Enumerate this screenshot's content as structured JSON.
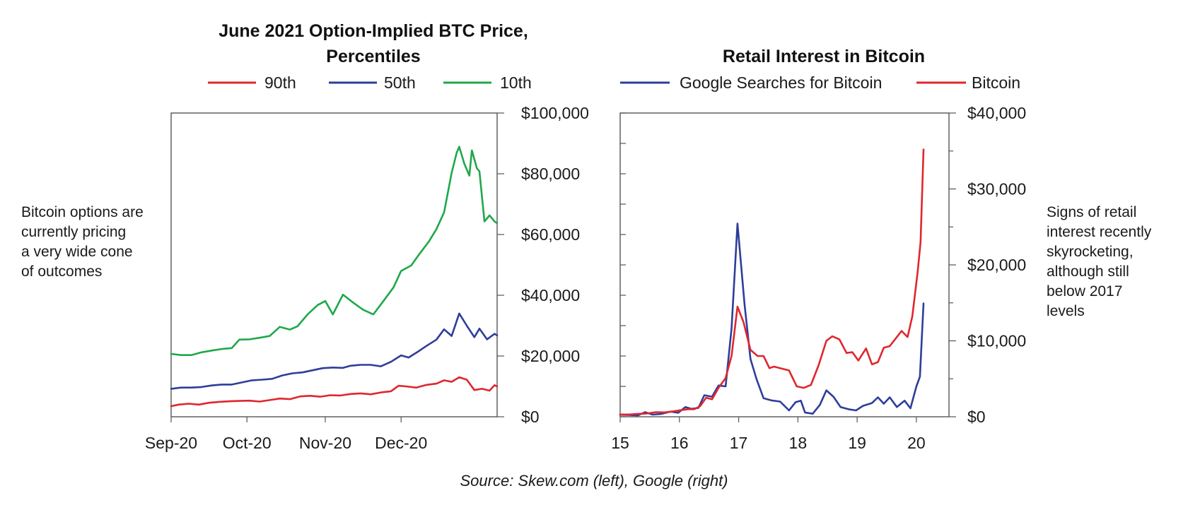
{
  "source": "Source: Skew.com (left), Google (right)",
  "colors": {
    "red": "#e0262e",
    "blue": "#2d3e9a",
    "green": "#1fa84a"
  },
  "chart_data": [
    {
      "type": "line",
      "title_lines": [
        "June 2021 Option-Implied BTC Price,",
        "Percentiles"
      ],
      "note_lines": [
        "Bitcoin options are",
        "currently pricing",
        "a very wide cone",
        "of outcomes"
      ],
      "xlabel": "",
      "ylabel": "",
      "x_ticks": [
        "Sep-20",
        "Oct-20",
        "Nov-20",
        "Dec-20"
      ],
      "x_range": [
        "2020-09-01",
        "2021-01-08"
      ],
      "y_ticks": [
        "$100,000",
        "$80,000",
        "$60,000",
        "$40,000",
        "$20,000",
        "$0"
      ],
      "y_tick_values": [
        100000,
        80000,
        60000,
        40000,
        20000,
        0
      ],
      "ylim": [
        0,
        100000
      ],
      "y_axis_side": "right",
      "legend_position": "top",
      "grid": false,
      "series": [
        {
          "name": "90th",
          "color": "#e0262e",
          "points": [
            [
              "2020-09-01",
              3500
            ],
            [
              "2020-09-04",
              4000
            ],
            [
              "2020-09-08",
              4300
            ],
            [
              "2020-09-12",
              4000
            ],
            [
              "2020-09-16",
              4600
            ],
            [
              "2020-09-20",
              4900
            ],
            [
              "2020-09-24",
              5100
            ],
            [
              "2020-09-28",
              5200
            ],
            [
              "2020-10-02",
              5300
            ],
            [
              "2020-10-06",
              5000
            ],
            [
              "2020-10-10",
              5500
            ],
            [
              "2020-10-14",
              6000
            ],
            [
              "2020-10-18",
              5800
            ],
            [
              "2020-10-22",
              6700
            ],
            [
              "2020-10-26",
              6900
            ],
            [
              "2020-10-30",
              6600
            ],
            [
              "2020-11-03",
              7100
            ],
            [
              "2020-11-07",
              7000
            ],
            [
              "2020-11-11",
              7500
            ],
            [
              "2020-11-15",
              7700
            ],
            [
              "2020-11-19",
              7400
            ],
            [
              "2020-11-23",
              8000
            ],
            [
              "2020-11-27",
              8400
            ],
            [
              "2020-11-30",
              10200
            ],
            [
              "2020-12-03",
              10000
            ],
            [
              "2020-12-07",
              9600
            ],
            [
              "2020-12-11",
              10500
            ],
            [
              "2020-12-15",
              10900
            ],
            [
              "2020-12-18",
              12000
            ],
            [
              "2020-12-21",
              11500
            ],
            [
              "2020-12-24",
              13000
            ],
            [
              "2020-12-27",
              12200
            ],
            [
              "2020-12-30",
              8800
            ],
            [
              "2021-01-02",
              9200
            ],
            [
              "2021-01-05",
              8600
            ],
            [
              "2021-01-07",
              10400
            ],
            [
              "2021-01-08",
              10000
            ]
          ]
        },
        {
          "name": "50th",
          "color": "#2d3e9a",
          "points": [
            [
              "2020-09-01",
              9200
            ],
            [
              "2020-09-05",
              9600
            ],
            [
              "2020-09-09",
              9600
            ],
            [
              "2020-09-13",
              9800
            ],
            [
              "2020-09-17",
              10300
            ],
            [
              "2020-09-21",
              10600
            ],
            [
              "2020-09-25",
              10600
            ],
            [
              "2020-09-29",
              11300
            ],
            [
              "2020-10-03",
              12000
            ],
            [
              "2020-10-07",
              12200
            ],
            [
              "2020-10-11",
              12500
            ],
            [
              "2020-10-15",
              13600
            ],
            [
              "2020-10-19",
              14300
            ],
            [
              "2020-10-23",
              14600
            ],
            [
              "2020-10-27",
              15300
            ],
            [
              "2020-10-31",
              16000
            ],
            [
              "2020-11-04",
              16200
            ],
            [
              "2020-11-08",
              16100
            ],
            [
              "2020-11-11",
              16800
            ],
            [
              "2020-11-15",
              17100
            ],
            [
              "2020-11-19",
              17100
            ],
            [
              "2020-11-23",
              16600
            ],
            [
              "2020-11-27",
              18100
            ],
            [
              "2020-12-01",
              20200
            ],
            [
              "2020-12-04",
              19500
            ],
            [
              "2020-12-08",
              21600
            ],
            [
              "2020-12-11",
              23300
            ],
            [
              "2020-12-15",
              25400
            ],
            [
              "2020-12-18",
              28800
            ],
            [
              "2020-12-21",
              26600
            ],
            [
              "2020-12-24",
              34000
            ],
            [
              "2020-12-27",
              30000
            ],
            [
              "2020-12-30",
              26200
            ],
            [
              "2021-01-01",
              29000
            ],
            [
              "2021-01-04",
              25500
            ],
            [
              "2021-01-07",
              27300
            ],
            [
              "2021-01-08",
              26800
            ]
          ]
        },
        {
          "name": "10th",
          "color": "#1fa84a",
          "points": [
            [
              "2020-09-01",
              20700
            ],
            [
              "2020-09-05",
              20300
            ],
            [
              "2020-09-09",
              20300
            ],
            [
              "2020-09-13",
              21200
            ],
            [
              "2020-09-17",
              21800
            ],
            [
              "2020-09-21",
              22300
            ],
            [
              "2020-09-25",
              22600
            ],
            [
              "2020-09-28",
              25400
            ],
            [
              "2020-10-02",
              25500
            ],
            [
              "2020-10-06",
              26000
            ],
            [
              "2020-10-10",
              26600
            ],
            [
              "2020-10-14",
              29600
            ],
            [
              "2020-10-18",
              28700
            ],
            [
              "2020-10-21",
              29800
            ],
            [
              "2020-10-25",
              33700
            ],
            [
              "2020-10-29",
              36800
            ],
            [
              "2020-11-01",
              38100
            ],
            [
              "2020-11-04",
              33700
            ],
            [
              "2020-11-08",
              40200
            ],
            [
              "2020-11-12",
              37600
            ],
            [
              "2020-11-16",
              35200
            ],
            [
              "2020-11-20",
              33700
            ],
            [
              "2020-11-24",
              38100
            ],
            [
              "2020-11-28",
              42600
            ],
            [
              "2020-12-01",
              48000
            ],
            [
              "2020-12-05",
              49800
            ],
            [
              "2020-12-08",
              53300
            ],
            [
              "2020-12-12",
              57700
            ],
            [
              "2020-12-15",
              61800
            ],
            [
              "2020-12-18",
              67300
            ],
            [
              "2020-12-21",
              80300
            ],
            [
              "2020-12-23",
              86900
            ],
            [
              "2020-12-24",
              88900
            ],
            [
              "2020-12-26",
              83400
            ],
            [
              "2020-12-28",
              79400
            ],
            [
              "2020-12-29",
              87700
            ],
            [
              "2020-12-31",
              81800
            ],
            [
              "2021-01-01",
              80800
            ],
            [
              "2021-01-03",
              64300
            ],
            [
              "2021-01-05",
              66300
            ],
            [
              "2021-01-07",
              64300
            ],
            [
              "2021-01-08",
              63700
            ]
          ]
        }
      ]
    },
    {
      "type": "line",
      "title_lines": [
        "Retail Interest in Bitcoin"
      ],
      "note_lines": [
        "Signs of retail",
        "interest recently",
        "skyrocketing,",
        "although still",
        "below 2017",
        "levels"
      ],
      "xlabel": "",
      "ylabel": "",
      "x_ticks": [
        "15",
        "16",
        "17",
        "18",
        "19",
        "20"
      ],
      "x_tick_values": [
        15,
        16,
        17,
        18,
        19,
        20
      ],
      "xlim": [
        15,
        20.55
      ],
      "y_ticks": [
        "$40,000",
        "$30,000",
        "$20,000",
        "$10,000",
        "$0"
      ],
      "y_tick_values": [
        40000,
        30000,
        20000,
        10000,
        0
      ],
      "ylim": [
        0,
        40000
      ],
      "y_axis_side": "right",
      "legend_position": "top",
      "grid": false,
      "series": [
        {
          "name": "Google Searches for Bitcoin",
          "color": "#2d3e9a",
          "axis": "left",
          "points": [
            [
              15.0,
              650
            ],
            [
              15.15,
              600
            ],
            [
              15.3,
              450
            ],
            [
              15.42,
              1500
            ],
            [
              15.55,
              700
            ],
            [
              15.7,
              950
            ],
            [
              15.85,
              1700
            ],
            [
              15.98,
              1300
            ],
            [
              16.1,
              3200
            ],
            [
              16.2,
              2600
            ],
            [
              16.32,
              2900
            ],
            [
              16.42,
              7100
            ],
            [
              16.55,
              6600
            ],
            [
              16.66,
              10300
            ],
            [
              16.78,
              10000
            ],
            [
              16.88,
              29000
            ],
            [
              16.98,
              63600
            ],
            [
              17.1,
              37000
            ],
            [
              17.2,
              19000
            ],
            [
              17.3,
              12500
            ],
            [
              17.42,
              6100
            ],
            [
              17.55,
              5400
            ],
            [
              17.7,
              5000
            ],
            [
              17.85,
              2100
            ],
            [
              17.96,
              4800
            ],
            [
              18.05,
              5300
            ],
            [
              18.12,
              1400
            ],
            [
              18.25,
              1000
            ],
            [
              18.37,
              3900
            ],
            [
              18.48,
              8700
            ],
            [
              18.6,
              6600
            ],
            [
              18.72,
              3200
            ],
            [
              18.85,
              2500
            ],
            [
              18.98,
              2100
            ],
            [
              19.1,
              3600
            ],
            [
              19.25,
              4500
            ],
            [
              19.35,
              6400
            ],
            [
              19.45,
              4300
            ],
            [
              19.55,
              6400
            ],
            [
              19.67,
              3200
            ],
            [
              19.8,
              5300
            ],
            [
              19.9,
              2800
            ],
            [
              20.0,
              10000
            ],
            [
              20.06,
              13200
            ],
            [
              20.12,
              37300
            ]
          ]
        },
        {
          "name": "Bitcoin",
          "color": "#e0262e",
          "axis": "right",
          "points": [
            [
              15.0,
              300
            ],
            [
              15.15,
              300
            ],
            [
              15.3,
              380
            ],
            [
              15.45,
              430
            ],
            [
              15.6,
              600
            ],
            [
              15.75,
              580
            ],
            [
              15.9,
              720
            ],
            [
              16.05,
              900
            ],
            [
              16.15,
              1000
            ],
            [
              16.25,
              1000
            ],
            [
              16.35,
              1400
            ],
            [
              16.45,
              2500
            ],
            [
              16.55,
              2300
            ],
            [
              16.66,
              3800
            ],
            [
              16.78,
              5100
            ],
            [
              16.88,
              8000
            ],
            [
              16.98,
              14500
            ],
            [
              17.08,
              12500
            ],
            [
              17.2,
              8800
            ],
            [
              17.32,
              8000
            ],
            [
              17.42,
              8000
            ],
            [
              17.52,
              6400
            ],
            [
              17.6,
              6600
            ],
            [
              17.7,
              6400
            ],
            [
              17.85,
              6100
            ],
            [
              17.98,
              4000
            ],
            [
              18.1,
              3800
            ],
            [
              18.22,
              4200
            ],
            [
              18.35,
              6800
            ],
            [
              18.48,
              10000
            ],
            [
              18.58,
              10600
            ],
            [
              18.7,
              10200
            ],
            [
              18.82,
              8400
            ],
            [
              18.92,
              8500
            ],
            [
              19.02,
              7400
            ],
            [
              19.15,
              9000
            ],
            [
              19.25,
              6900
            ],
            [
              19.35,
              7200
            ],
            [
              19.45,
              9100
            ],
            [
              19.55,
              9300
            ],
            [
              19.65,
              10300
            ],
            [
              19.75,
              11300
            ],
            [
              19.85,
              10500
            ],
            [
              19.93,
              13200
            ],
            [
              20.02,
              19000
            ],
            [
              20.07,
              23000
            ],
            [
              20.12,
              35200
            ]
          ]
        }
      ],
      "left_axis": {
        "ylim": [
          0,
          100
        ],
        "unlabeled": true
      }
    }
  ]
}
